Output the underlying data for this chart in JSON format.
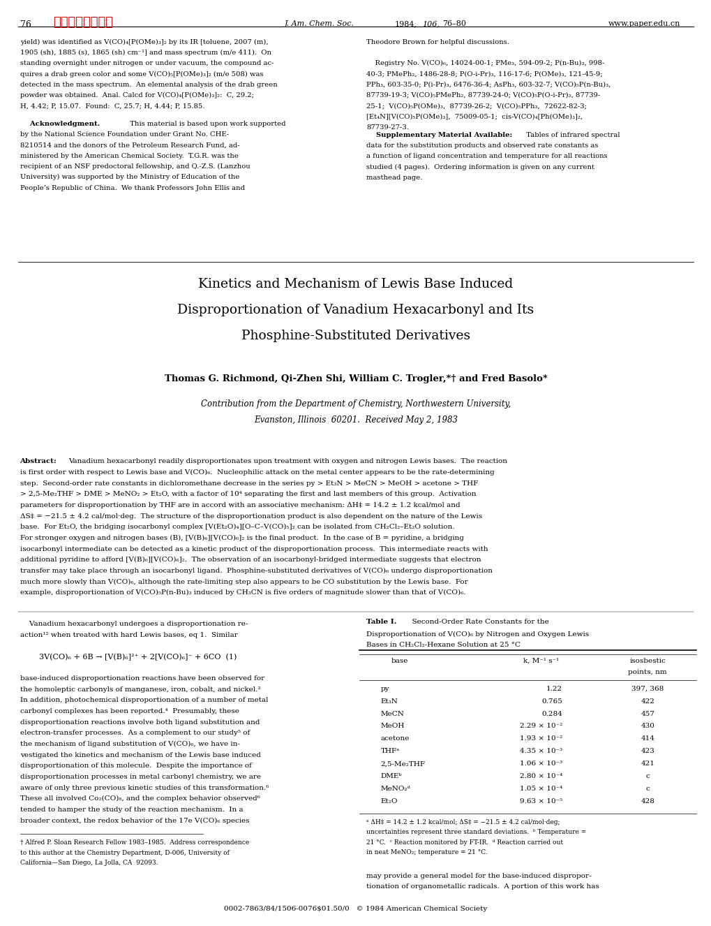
{
  "page_width": 10.2,
  "page_height": 13.26,
  "background_color": "#ffffff",
  "header_page_num": "76",
  "header_journal": "J. Am. Chem. Soc.",
  "header_year": "1984,",
  "header_vol": "106,",
  "header_pages": "76–80",
  "header_website": "www.paper.edu.cn",
  "top_left_text": [
    "yield) was identified as V(CO)₄[P(OMe)₃]₂ by its IR [toluene, 2007 (m),",
    "1905 (sh), 1885 (s), 1865 (sh) cm⁻¹] and mass spectrum (m/e 411).  On",
    "standing overnight under nitrogen or under vacuum, the compound ac-",
    "quires a drab green color and some V(CO)₅[P(OMe)₃]₂ (m/e 508) was",
    "detected in the mass spectrum.  An elemental analysis of the drab green",
    "powder was obtained.  Anal. Calcd for V(CO)₄[P(OMe)₃]₂:  C, 29.2;",
    "H, 4.42; P, 15.07.  Found:  C, 25.7; H, 4.44; P, 15.85."
  ],
  "ack_bold": "    Acknowledgment.",
  "ack_rest": "  This material is based upon work supported",
  "ack_lines": [
    "by the National Science Foundation under Grant No. CHE-",
    "8210514 and the donors of the Petroleum Research Fund, ad-",
    "ministered by the American Chemical Society.  T.G.R. was the",
    "recipient of an NSF predoctoral fellowship, and Q.-Z.S. (Lanzhou",
    "University) was supported by the Ministry of Education of the",
    "People’s Republic of China.  We thank Professors John Ellis and"
  ],
  "top_right_text": [
    "Theodore Brown for helpful discussions.",
    "",
    "    Registry No. V(CO)₆, 14024-00-1; PMe₃, 594-09-2; P(n-Bu)₃, 998-",
    "40-3; PMePh₂, 1486-28-8; P(O-i-Pr)₃, 116-17-6; P(OMe)₃, 121-45-9;",
    "PPh₃, 603-35-0; P(i-Pr)₃, 6476-36-4; AsPh₃, 603-32-7; V(CO)₅P(n-Bu)₃,",
    "87739-19-3; V(CO)₅PMePh₂, 87739-24-0; V(CO)₅P(O-i-Pr)₃, 87739-",
    "25-1;  V(CO)₅P(OMe)₃,  87739-26-2;  V(CO)₅PPh₃,  72622-82-3;",
    "[Et₄N][V(CO)₅P(OMe)₃],  75009-05-1;  cis-V(CO)₄[Ph(OMe)₃]₂,",
    "87739-27-3."
  ],
  "supp_bold": "    Supplementary Material Available:",
  "supp_rest": "  Tables of infrared spectral",
  "supp_lines": [
    "data for the substitution products and observed rate constants as",
    "a function of ligand concentration and temperature for all reactions",
    "studied (4 pages).  Ordering information is given on any current",
    "masthead page."
  ],
  "title_lines": [
    "Kinetics and Mechanism of Lewis Base Induced",
    "Disproportionation of Vanadium Hexacarbonyl and Its",
    "Phosphine-Substituted Derivatives"
  ],
  "authors": "Thomas G. Richmond, Qi-Zhen Shi, William C. Trogler,*† and Fred Basolo*",
  "affiliation_lines": [
    "Contribution from the Department of Chemistry, Northwestern University,",
    "Evanston, Illinois  60201.  Received May 2, 1983"
  ],
  "abstract_lines": [
    "  Vanadium hexacarbonyl readily disproportionates upon treatment with oxygen and nitrogen Lewis bases.  The reaction",
    "is first order with respect to Lewis base and V(CO)₆.  Nucleophilic attack on the metal center appears to be the rate-determining",
    "step.  Second-order rate constants in dichloromethane decrease in the series py > Et₃N > MeCN > MeOH > acetone > THF",
    "> 2,5-Me₂THF > DME > MeNO₂ > Et₂O, with a factor of 10⁴ separating the first and last members of this group.  Activation",
    "parameters for disproportionation by THF are in accord with an associative mechanism: ΔH‡ = 14.2 ± 1.2 kcal/mol and",
    "ΔS‡ = −21.5 ± 4.2 cal/mol·deg.  The structure of the disproportionation product is also dependent on the nature of the Lewis",
    "base.  For Et₂O, the bridging isocarbonyl complex [V(Et₂O)₄][O–C–V(CO)₅]₂ can be isolated from CH₂Cl₂–Et₂O solution.",
    "For stronger oxygen and nitrogen bases (B), [V(B)₆][V(CO)₆]₂ is the final product.  In the case of B = pyridine, a bridging",
    "isocarbonyl intermediate can be detected as a kinetic product of the disproportionation process.  This intermediate reacts with",
    "additional pyridine to afford [V(B)₆][V(CO)₆]₂.  The observation of an isocarbonyl-bridged intermediate suggests that electron",
    "transfer may take place through an isocarbonyl ligand.  Phosphine-substituted derivatives of V(CO)₆ undergo disproportionation",
    "much more slowly than V(CO)₆, although the rate-limiting step also appears to be CO substitution by the Lewis base.  For",
    "example, disproportionation of V(CO)₅P(n-Bu)₃ induced by CH₃CN is five orders of magnitude slower than that of V(CO)₆."
  ],
  "left_body_text": [
    "    Vanadium hexacarbonyl undergoes a disproportionation re-",
    "action¹² when treated with hard Lewis bases, eq 1.  Similar",
    "",
    "    3V(CO)₆ + 6B → [V(B)₆]²⁺ + 2[V(CO)₆]⁻ + 6CO  (1)",
    "",
    "base-induced disproportionation reactions have been observed for",
    "the homoleptic carbonyls of manganese, iron, cobalt, and nickel.³",
    "In addition, photochemical disproportionation of a number of metal",
    "carbonyl complexes has been reported.⁴  Presumably, these",
    "disproportionation reactions involve both ligand substitution and",
    "electron-transfer processes.  As a complement to our study⁵ of",
    "the mechanism of ligand substitution of V(CO)₆, we have in-",
    "vestigated the kinetics and mechanism of the Lewis base induced",
    "disproportionation of this molecule.  Despite the importance of",
    "disproportionation processes in metal carbonyl chemistry, we are",
    "aware of only three previous kinetic studies of this transformation.⁶",
    "These all involved Co₂(CO)₈, and the complex behavior observed⁶",
    "tended to hamper the study of the reaction mechanism.  In a",
    "broader context, the redox behavior of the 17e V(CO)₆ species"
  ],
  "footnote_lines": [
    "† Alfred P. Sloan Research Fellow 1983–1985.  Address correspondence",
    "to this author at the Chemistry Department, D-006, University of",
    "California—San Diego, La Jolla, CA  92093."
  ],
  "table_title": "Table I.",
  "table_title_rest": "  Second-Order Rate Constants for the",
  "table_subtitle1": "Disproportionation of V(CO)₆ by Nitrogen and Oxygen Lewis",
  "table_subtitle2": "Bases in CH₂Cl₂-Hexane Solution at 25 °C",
  "table_data": [
    [
      "py",
      "1.22",
      "397, 368"
    ],
    [
      "Et₃N",
      "0.765",
      "422"
    ],
    [
      "MeCN",
      "0.284",
      "457"
    ],
    [
      "MeOH",
      "2.29 × 10⁻²",
      "430"
    ],
    [
      "acetone",
      "1.93 × 10⁻²",
      "414"
    ],
    [
      "THFᵃ",
      "4.35 × 10⁻³",
      "423"
    ],
    [
      "2,5-Me₂THF",
      "1.06 × 10⁻³",
      "421"
    ],
    [
      "DMEᵇ",
      "2.80 × 10⁻⁴",
      "c"
    ],
    [
      "MeNO₂ᵈ",
      "1.05 × 10⁻⁴",
      "c"
    ],
    [
      "Et₂O",
      "9.63 × 10⁻⁵",
      "428"
    ]
  ],
  "table_footnote_lines": [
    "ᵃ ΔH‡ = 14.2 ± 1.2 kcal/mol; ΔS‡ = −21.5 ± 4.2 cal/mol·deg;",
    "uncertainties represent three standard deviations.  ᵇ Temperature =",
    "21 °C.  ᶜ Reaction monitored by FT-IR.  ᵈ Reaction carried out",
    "in neat MeNO₂; temperature = 21 °C."
  ],
  "right_body_bottom": [
    "may provide a general model for the base-induced dispropor-",
    "tionation of organometallic radicals.  A portion of this work has"
  ],
  "bottom_line": "0002-7863/84/1506-0076$01.50/0   © 1984 American Chemical Society"
}
